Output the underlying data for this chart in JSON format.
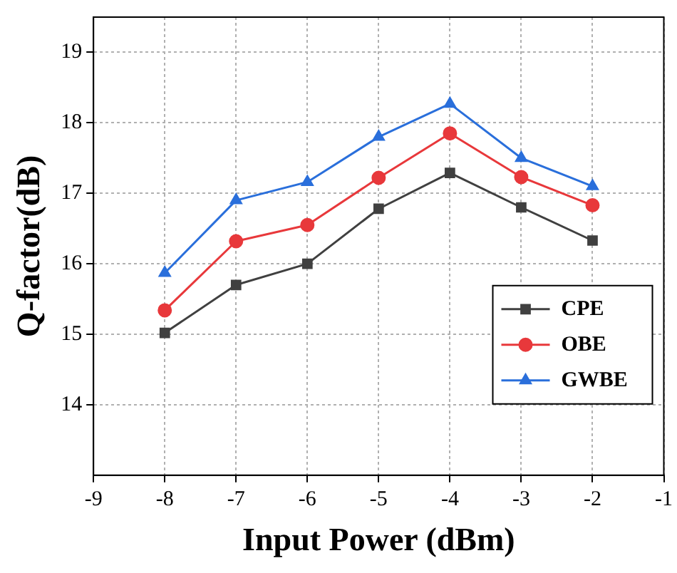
{
  "chart_data": {
    "type": "line",
    "xlabel": "Input Power (dBm)",
    "ylabel": "Q-factor(dB)",
    "x": [
      -8,
      -7,
      -6,
      -5,
      -4,
      -3,
      -2
    ],
    "series": [
      {
        "name": "CPE",
        "color": "#404040",
        "marker": "square",
        "values": [
          15.02,
          15.7,
          16.0,
          16.78,
          17.29,
          16.8,
          16.33
        ]
      },
      {
        "name": "OBE",
        "color": "#e8383b",
        "marker": "circle",
        "values": [
          15.34,
          16.32,
          16.55,
          17.22,
          17.85,
          17.23,
          16.83
        ]
      },
      {
        "name": "GWBE",
        "color": "#2a6fdb",
        "marker": "triangle",
        "values": [
          15.87,
          16.9,
          17.16,
          17.8,
          18.27,
          17.5,
          17.1
        ]
      }
    ],
    "xlim": [
      -9,
      -1
    ],
    "xticks": [
      -9,
      -8,
      -7,
      -6,
      -5,
      -4,
      -3,
      -2,
      -1
    ],
    "ylim": [
      13,
      19.5
    ],
    "yticks": [
      14,
      15,
      16,
      17,
      18,
      19
    ],
    "grid": true,
    "legend": "bottom right",
    "line_style": "solid"
  }
}
